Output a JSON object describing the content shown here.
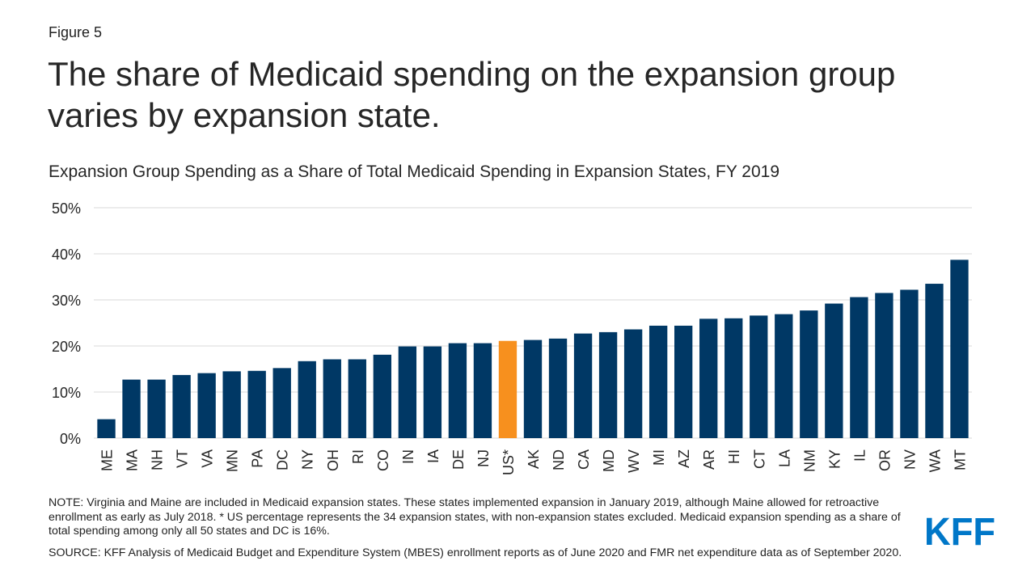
{
  "figure_label": "Figure 5",
  "title": "The share of Medicaid spending on the expansion group varies by expansion state.",
  "subtitle": "Expansion Group Spending as a Share of Total Medicaid Spending in Expansion States, FY 2019",
  "note": "NOTE: Virginia and Maine are included in Medicaid expansion states. These states implemented expansion in January 2019, although Maine allowed for retroactive enrollment as early as July 2018. * US percentage represents the 34 expansion states, with non-expansion states excluded. Medicaid expansion spending as a share of total spending among only all 50 states and DC is 16%.",
  "source": "SOURCE: KFF Analysis of Medicaid Budget and Expenditure System (MBES) enrollment reports as of June 2020 and FMR net expenditure data as of September 2020.",
  "logo_text": "KFF",
  "colors": {
    "bar": "#003865",
    "highlight": "#F7901E",
    "grid": "#D9D9D9",
    "logo": "#0077C8"
  },
  "chart_data": {
    "type": "bar",
    "categories": [
      "ME",
      "MA",
      "NH",
      "VT",
      "VA",
      "MN",
      "PA",
      "DC",
      "NY",
      "OH",
      "RI",
      "CO",
      "IN",
      "IA",
      "DE",
      "NJ",
      "US*",
      "AK",
      "ND",
      "CA",
      "MD",
      "WV",
      "MI",
      "AZ",
      "AR",
      "HI",
      "CT",
      "LA",
      "NM",
      "KY",
      "IL",
      "OR",
      "NV",
      "WA",
      "MT"
    ],
    "values": [
      4.1,
      12.7,
      12.7,
      13.7,
      14.1,
      14.5,
      14.6,
      15.2,
      16.7,
      17.1,
      17.1,
      18.1,
      19.9,
      19.9,
      20.6,
      20.6,
      21.1,
      21.3,
      21.6,
      22.7,
      23.0,
      23.6,
      24.4,
      24.4,
      25.9,
      26.0,
      26.6,
      26.9,
      27.7,
      29.2,
      30.6,
      31.5,
      32.2,
      33.5,
      38.7
    ],
    "highlight_category": "US*",
    "ylim": [
      0,
      50
    ],
    "yticks": [
      0,
      10,
      20,
      30,
      40,
      50
    ],
    "ytick_labels": [
      "0%",
      "10%",
      "20%",
      "30%",
      "40%",
      "50%"
    ],
    "xlabel": "",
    "ylabel": "",
    "grid": true,
    "legend": "none"
  }
}
